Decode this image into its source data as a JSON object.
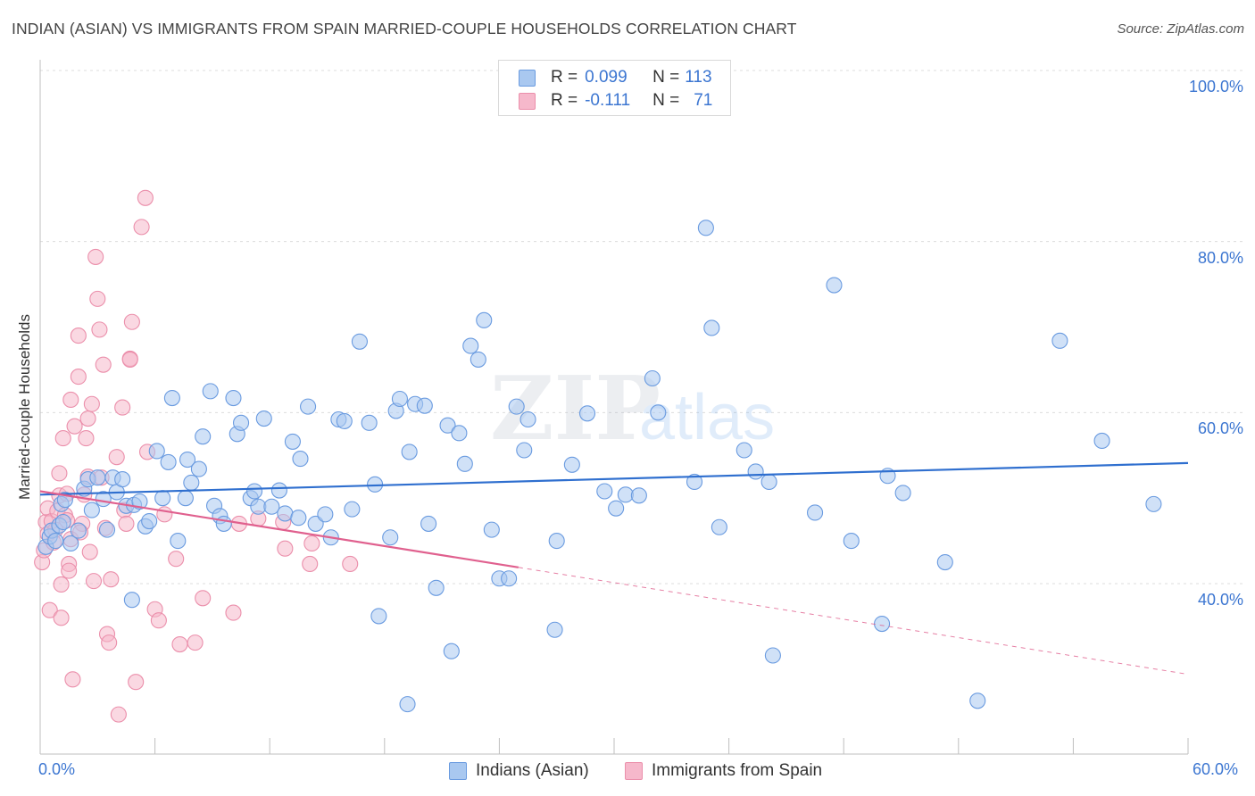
{
  "title": "INDIAN (ASIAN) VS IMMIGRANTS FROM SPAIN MARRIED-COUPLE HOUSEHOLDS CORRELATION CHART",
  "source": "Source: ZipAtlas.com",
  "watermark": {
    "zip": "ZIP",
    "atlas": "atlas"
  },
  "legend_top": {
    "rows": [
      {
        "r_label": "R = ",
        "r_value": "0.099",
        "n_label": "N = ",
        "n_value": "113"
      },
      {
        "r_label": "R = ",
        "r_value": "-0.111",
        "n_label": "N = ",
        "n_value": "71"
      }
    ]
  },
  "colors": {
    "blue_fill": "#a9c8f0",
    "blue_stroke": "#6a9be0",
    "blue_line": "#2f6fcf",
    "pink_fill": "#f6b8cb",
    "pink_stroke": "#eb8fab",
    "pink_line": "#e0608e",
    "axis_text": "#3c76d1"
  },
  "chart_data": {
    "type": "scatter",
    "title": "INDIAN (ASIAN) VS IMMIGRANTS FROM SPAIN MARRIED-COUPLE HOUSEHOLDS CORRELATION CHART",
    "xlabel": "",
    "ylabel": "Married-couple Households",
    "xlim": [
      0,
      60
    ],
    "ylim": [
      20,
      100
    ],
    "x_tick_labels": [
      "0.0%",
      "60.0%"
    ],
    "y_ticks": [
      40,
      60,
      80,
      100
    ],
    "y_tick_labels": [
      "40.0%",
      "60.0%",
      "80.0%",
      "100.0%"
    ],
    "grid": "horizontal dashed",
    "legend_position": "bottom",
    "series": [
      {
        "name": "Indians (Asian)",
        "color": "#a9c8f0",
        "trend": {
          "x": [
            0,
            60
          ],
          "y": [
            50.4,
            54.1
          ],
          "style": "solid"
        },
        "points": [
          [
            0.3,
            44.3
          ],
          [
            0.5,
            45.5
          ],
          [
            0.6,
            46.2
          ],
          [
            0.8,
            45.0
          ],
          [
            1.0,
            46.8
          ],
          [
            1.1,
            49.3
          ],
          [
            1.2,
            47.2
          ],
          [
            1.3,
            49.8
          ],
          [
            1.6,
            44.7
          ],
          [
            2.0,
            46.2
          ],
          [
            2.3,
            51.1
          ],
          [
            2.5,
            52.2
          ],
          [
            2.7,
            48.6
          ],
          [
            3.0,
            52.4
          ],
          [
            3.3,
            49.9
          ],
          [
            3.5,
            46.3
          ],
          [
            3.8,
            52.4
          ],
          [
            4.0,
            50.7
          ],
          [
            4.3,
            52.2
          ],
          [
            4.5,
            49.1
          ],
          [
            4.8,
            38.1
          ],
          [
            4.9,
            49.2
          ],
          [
            5.2,
            49.6
          ],
          [
            5.5,
            46.7
          ],
          [
            5.7,
            47.3
          ],
          [
            6.1,
            55.5
          ],
          [
            6.4,
            50.0
          ],
          [
            6.7,
            54.2
          ],
          [
            6.9,
            61.7
          ],
          [
            7.2,
            45.0
          ],
          [
            7.6,
            50.0
          ],
          [
            7.7,
            54.5
          ],
          [
            7.9,
            51.8
          ],
          [
            8.3,
            53.4
          ],
          [
            8.5,
            57.2
          ],
          [
            8.9,
            62.5
          ],
          [
            9.1,
            49.1
          ],
          [
            9.4,
            47.9
          ],
          [
            9.6,
            47.0
          ],
          [
            10.1,
            61.7
          ],
          [
            10.3,
            57.5
          ],
          [
            10.5,
            58.8
          ],
          [
            11.0,
            50.0
          ],
          [
            11.2,
            50.8
          ],
          [
            11.4,
            49.0
          ],
          [
            11.7,
            59.3
          ],
          [
            12.1,
            49.0
          ],
          [
            12.5,
            50.9
          ],
          [
            12.8,
            48.2
          ],
          [
            13.2,
            56.6
          ],
          [
            13.5,
            47.7
          ],
          [
            13.6,
            54.6
          ],
          [
            14.0,
            60.7
          ],
          [
            14.4,
            47.0
          ],
          [
            14.9,
            48.1
          ],
          [
            15.2,
            45.4
          ],
          [
            15.6,
            59.2
          ],
          [
            15.9,
            59.0
          ],
          [
            16.3,
            48.7
          ],
          [
            16.7,
            68.3
          ],
          [
            17.2,
            58.8
          ],
          [
            17.5,
            51.6
          ],
          [
            17.7,
            36.2
          ],
          [
            18.3,
            45.4
          ],
          [
            18.6,
            60.2
          ],
          [
            18.8,
            61.6
          ],
          [
            19.2,
            25.9
          ],
          [
            19.3,
            55.4
          ],
          [
            19.6,
            61.0
          ],
          [
            20.1,
            60.8
          ],
          [
            20.3,
            47.0
          ],
          [
            20.7,
            39.5
          ],
          [
            21.3,
            58.5
          ],
          [
            21.5,
            32.1
          ],
          [
            21.9,
            57.6
          ],
          [
            22.2,
            54.0
          ],
          [
            22.5,
            67.8
          ],
          [
            22.9,
            66.2
          ],
          [
            23.2,
            70.8
          ],
          [
            23.6,
            46.3
          ],
          [
            24.0,
            40.6
          ],
          [
            24.5,
            40.6
          ],
          [
            24.9,
            60.7
          ],
          [
            25.3,
            55.6
          ],
          [
            25.5,
            59.2
          ],
          [
            26.9,
            34.6
          ],
          [
            27.0,
            45.0
          ],
          [
            27.8,
            53.9
          ],
          [
            28.6,
            59.9
          ],
          [
            29.5,
            50.8
          ],
          [
            30.1,
            48.8
          ],
          [
            30.6,
            50.4
          ],
          [
            31.3,
            50.3
          ],
          [
            32.0,
            64.0
          ],
          [
            32.3,
            60.0
          ],
          [
            34.2,
            51.9
          ],
          [
            34.8,
            81.6
          ],
          [
            35.1,
            69.9
          ],
          [
            35.5,
            46.6
          ],
          [
            36.8,
            55.6
          ],
          [
            37.4,
            53.1
          ],
          [
            38.1,
            51.9
          ],
          [
            38.3,
            31.6
          ],
          [
            40.5,
            48.3
          ],
          [
            41.5,
            74.9
          ],
          [
            42.4,
            45.0
          ],
          [
            44.0,
            35.3
          ],
          [
            44.3,
            52.6
          ],
          [
            45.1,
            50.6
          ],
          [
            47.3,
            42.5
          ],
          [
            49.0,
            26.3
          ],
          [
            53.3,
            68.4
          ],
          [
            55.5,
            56.7
          ],
          [
            58.2,
            49.3
          ]
        ]
      },
      {
        "name": "Immigrants from Spain",
        "color": "#f6b8cb",
        "trend": {
          "x": [
            0,
            25
          ],
          "y": [
            50.8,
            41.9
          ],
          "dashed_to": [
            60,
            29.4
          ]
        },
        "points": [
          [
            0.1,
            42.5
          ],
          [
            0.2,
            43.9
          ],
          [
            0.3,
            47.2
          ],
          [
            0.4,
            45.8
          ],
          [
            0.4,
            48.8
          ],
          [
            0.5,
            36.9
          ],
          [
            0.6,
            47.3
          ],
          [
            0.7,
            44.8
          ],
          [
            0.8,
            46.3
          ],
          [
            0.9,
            48.5
          ],
          [
            1.0,
            50.3
          ],
          [
            1.0,
            52.9
          ],
          [
            1.1,
            39.9
          ],
          [
            1.1,
            36.0
          ],
          [
            1.2,
            57.0
          ],
          [
            1.3,
            48.0
          ],
          [
            1.4,
            50.5
          ],
          [
            1.5,
            42.3
          ],
          [
            1.5,
            41.5
          ],
          [
            1.6,
            45.2
          ],
          [
            1.6,
            61.5
          ],
          [
            1.7,
            28.8
          ],
          [
            1.8,
            58.4
          ],
          [
            2.0,
            69.0
          ],
          [
            2.0,
            64.2
          ],
          [
            2.2,
            47.0
          ],
          [
            2.3,
            50.4
          ],
          [
            2.4,
            57.0
          ],
          [
            2.5,
            52.5
          ],
          [
            2.5,
            59.3
          ],
          [
            2.6,
            43.7
          ],
          [
            2.7,
            61.0
          ],
          [
            2.8,
            40.3
          ],
          [
            2.9,
            78.2
          ],
          [
            3.0,
            73.3
          ],
          [
            3.1,
            69.7
          ],
          [
            3.2,
            52.4
          ],
          [
            3.3,
            65.6
          ],
          [
            3.4,
            46.5
          ],
          [
            3.5,
            34.1
          ],
          [
            3.6,
            33.1
          ],
          [
            3.7,
            40.5
          ],
          [
            4.0,
            54.8
          ],
          [
            4.1,
            24.7
          ],
          [
            4.3,
            60.6
          ],
          [
            4.4,
            48.6
          ],
          [
            4.5,
            47.0
          ],
          [
            4.7,
            66.3
          ],
          [
            4.7,
            66.2
          ],
          [
            4.8,
            70.6
          ],
          [
            5.0,
            28.5
          ],
          [
            5.3,
            81.7
          ],
          [
            5.5,
            85.1
          ],
          [
            5.6,
            55.4
          ],
          [
            6.0,
            37.0
          ],
          [
            6.2,
            35.7
          ],
          [
            6.5,
            48.1
          ],
          [
            7.1,
            42.9
          ],
          [
            7.3,
            32.9
          ],
          [
            8.1,
            33.1
          ],
          [
            8.5,
            38.3
          ],
          [
            10.1,
            36.6
          ],
          [
            10.4,
            47.0
          ],
          [
            11.4,
            47.6
          ],
          [
            12.7,
            47.2
          ],
          [
            12.8,
            44.1
          ],
          [
            14.1,
            42.3
          ],
          [
            14.2,
            44.7
          ],
          [
            16.2,
            42.3
          ],
          [
            2.1,
            46.0
          ],
          [
            1.4,
            47.4
          ]
        ]
      }
    ]
  },
  "legend_bottom": [
    "Indians (Asian)",
    "Immigrants from Spain"
  ]
}
